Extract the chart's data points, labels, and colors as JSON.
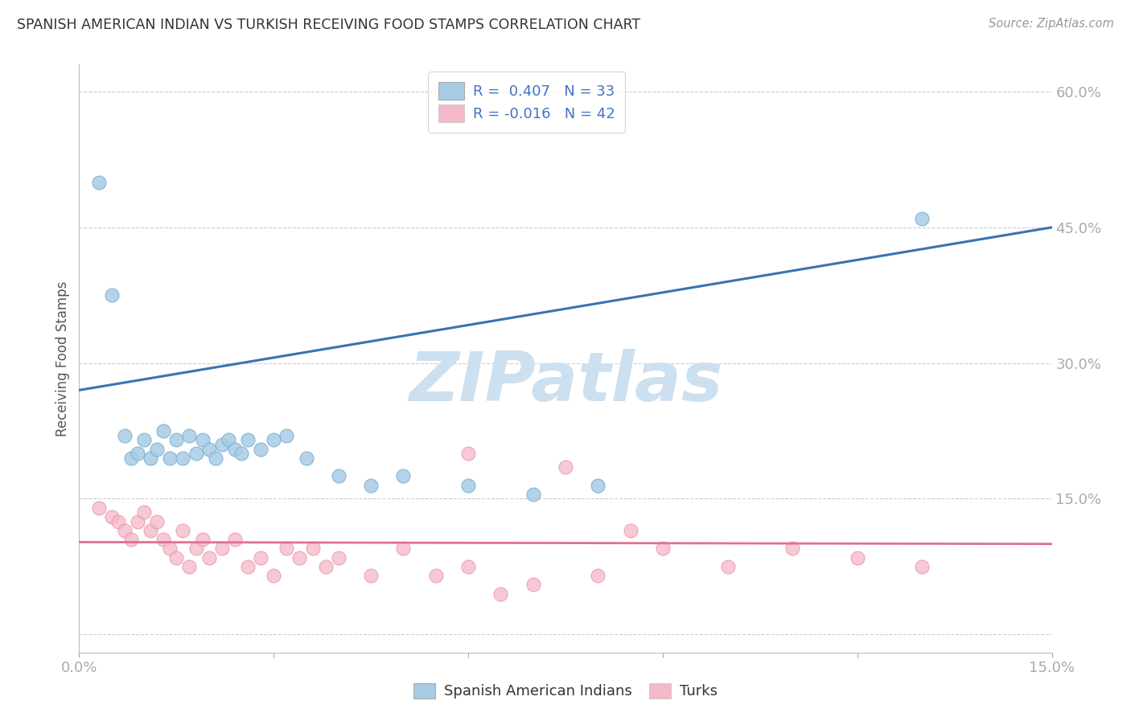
{
  "title": "SPANISH AMERICAN INDIAN VS TURKISH RECEIVING FOOD STAMPS CORRELATION CHART",
  "source": "Source: ZipAtlas.com",
  "ylabel": "Receiving Food Stamps",
  "x_min": 0.0,
  "x_max": 0.15,
  "y_min": -0.02,
  "y_max": 0.63,
  "y_ticks": [
    0.0,
    0.15,
    0.3,
    0.45,
    0.6
  ],
  "y_tick_labels": [
    "",
    "15.0%",
    "30.0%",
    "45.0%",
    "60.0%"
  ],
  "x_tick_labels_show": [
    "0.0%",
    "15.0%"
  ],
  "blue_R": 0.407,
  "blue_N": 33,
  "pink_R": -0.016,
  "pink_N": 42,
  "blue_color": "#a8cce4",
  "blue_edge_color": "#7aaecf",
  "pink_color": "#f5b8c8",
  "pink_edge_color": "#e890aa",
  "blue_line_color": "#3a73b0",
  "pink_line_color": "#e07090",
  "watermark": "ZIPatlas",
  "watermark_color": "#cde0f0",
  "legend_blue_label": "Spanish American Indians",
  "legend_pink_label": "Turks",
  "blue_line_x": [
    0.0,
    0.15
  ],
  "blue_line_y": [
    0.27,
    0.45
  ],
  "pink_line_x": [
    0.0,
    0.15
  ],
  "pink_line_y": [
    0.102,
    0.1
  ],
  "blue_x": [
    0.003,
    0.005,
    0.007,
    0.008,
    0.009,
    0.01,
    0.011,
    0.012,
    0.013,
    0.014,
    0.015,
    0.016,
    0.017,
    0.018,
    0.019,
    0.02,
    0.021,
    0.022,
    0.023,
    0.024,
    0.025,
    0.026,
    0.028,
    0.03,
    0.032,
    0.035,
    0.04,
    0.045,
    0.05,
    0.06,
    0.07,
    0.08,
    0.13
  ],
  "blue_y": [
    0.5,
    0.375,
    0.22,
    0.195,
    0.2,
    0.215,
    0.195,
    0.205,
    0.225,
    0.195,
    0.215,
    0.195,
    0.22,
    0.2,
    0.215,
    0.205,
    0.195,
    0.21,
    0.215,
    0.205,
    0.2,
    0.215,
    0.205,
    0.215,
    0.22,
    0.195,
    0.175,
    0.165,
    0.175,
    0.165,
    0.155,
    0.165,
    0.46
  ],
  "pink_x": [
    0.003,
    0.005,
    0.006,
    0.007,
    0.008,
    0.009,
    0.01,
    0.011,
    0.012,
    0.013,
    0.014,
    0.015,
    0.016,
    0.017,
    0.018,
    0.019,
    0.02,
    0.022,
    0.024,
    0.026,
    0.028,
    0.03,
    0.032,
    0.034,
    0.036,
    0.038,
    0.04,
    0.045,
    0.05,
    0.055,
    0.06,
    0.065,
    0.07,
    0.075,
    0.08,
    0.09,
    0.1,
    0.11,
    0.12,
    0.13,
    0.06,
    0.085
  ],
  "pink_y": [
    0.14,
    0.13,
    0.125,
    0.115,
    0.105,
    0.125,
    0.135,
    0.115,
    0.125,
    0.105,
    0.095,
    0.085,
    0.115,
    0.075,
    0.095,
    0.105,
    0.085,
    0.095,
    0.105,
    0.075,
    0.085,
    0.065,
    0.095,
    0.085,
    0.095,
    0.075,
    0.085,
    0.065,
    0.095,
    0.065,
    0.075,
    0.045,
    0.055,
    0.185,
    0.065,
    0.095,
    0.075,
    0.095,
    0.085,
    0.075,
    0.2,
    0.115
  ]
}
